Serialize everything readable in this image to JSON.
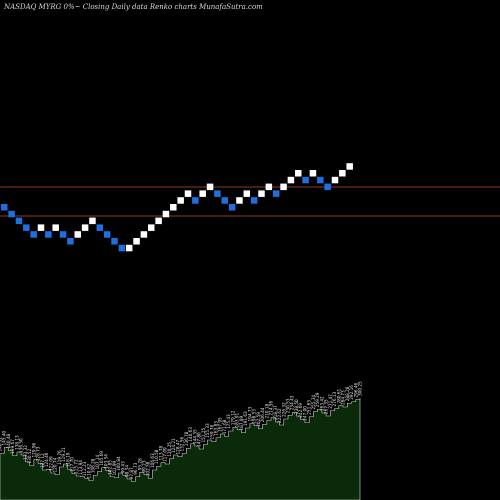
{
  "header": {
    "exchange_symbol": "NASDAQ MYRG",
    "change": "0%",
    "arrow": "~",
    "description": "Closing Daily data  Renko  charts  MunafaSutra.com"
  },
  "colors": {
    "background": "#000000",
    "up_brick": "#ffffff",
    "down_brick": "#1e6fe0",
    "level_line": "#8b3a20",
    "volume_fill": "#0a2a0a",
    "volume_stroke": "#cfd8cf"
  },
  "chart_data": {
    "type": "renko",
    "title": "",
    "bricks": [
      {
        "dir": "down",
        "row": 0
      },
      {
        "dir": "down",
        "row": 1
      },
      {
        "dir": "down",
        "row": 2
      },
      {
        "dir": "down",
        "row": 3
      },
      {
        "dir": "down",
        "row": 4
      },
      {
        "dir": "up",
        "row": 3
      },
      {
        "dir": "down",
        "row": 4
      },
      {
        "dir": "up",
        "row": 3
      },
      {
        "dir": "down",
        "row": 4
      },
      {
        "dir": "down",
        "row": 5
      },
      {
        "dir": "up",
        "row": 4
      },
      {
        "dir": "up",
        "row": 3
      },
      {
        "dir": "up",
        "row": 2
      },
      {
        "dir": "down",
        "row": 3
      },
      {
        "dir": "down",
        "row": 4
      },
      {
        "dir": "down",
        "row": 5
      },
      {
        "dir": "down",
        "row": 6
      },
      {
        "dir": "up",
        "row": 6
      },
      {
        "dir": "up",
        "row": 5
      },
      {
        "dir": "up",
        "row": 4
      },
      {
        "dir": "up",
        "row": 3
      },
      {
        "dir": "up",
        "row": 2
      },
      {
        "dir": "up",
        "row": 1
      },
      {
        "dir": "up",
        "row": 0
      },
      {
        "dir": "up",
        "row": -1
      },
      {
        "dir": "up",
        "row": -2
      },
      {
        "dir": "down",
        "row": -1
      },
      {
        "dir": "up",
        "row": -2
      },
      {
        "dir": "up",
        "row": -3
      },
      {
        "dir": "down",
        "row": -2
      },
      {
        "dir": "down",
        "row": -1
      },
      {
        "dir": "down",
        "row": 0
      },
      {
        "dir": "up",
        "row": -1
      },
      {
        "dir": "up",
        "row": -2
      },
      {
        "dir": "down",
        "row": -1
      },
      {
        "dir": "up",
        "row": -2
      },
      {
        "dir": "up",
        "row": -3
      },
      {
        "dir": "down",
        "row": -2
      },
      {
        "dir": "up",
        "row": -3
      },
      {
        "dir": "up",
        "row": -4
      },
      {
        "dir": "up",
        "row": -5
      },
      {
        "dir": "down",
        "row": -4
      },
      {
        "dir": "up",
        "row": -5
      },
      {
        "dir": "down",
        "row": -4
      },
      {
        "dir": "down",
        "row": -3
      },
      {
        "dir": "up",
        "row": -4
      },
      {
        "dir": "up",
        "row": -5
      },
      {
        "dir": "up",
        "row": -6
      }
    ],
    "level_lines": [
      "upper",
      "lower"
    ],
    "volume_labels": [
      "148.92",
      "145.40",
      "140.48",
      "139.67",
      "138.13",
      "136.50",
      "133.32",
      "130.52",
      "129.96",
      "128.73",
      "127.12",
      "124.46",
      "122.09",
      "120.74",
      "119.76",
      "119.21",
      "118.19",
      "117.70",
      "115.72",
      "113.94",
      "112.23",
      "110.62",
      "108.28",
      "107.14",
      "105.69",
      "103.54",
      "102.85",
      "101.99",
      "100.84",
      "99.43",
      "98.34",
      "97.87",
      "96.73",
      "95.28",
      "99.23",
      "102.58",
      "106.63",
      "110.58",
      "113.78",
      "117.09",
      "120.25",
      "124.21",
      "128.47",
      "132.56",
      "136.78",
      "140.63",
      "144.35",
      "147.80",
      "151.25",
      "155.33",
      "159.78",
      "163.83",
      "167.95",
      "171.68",
      "175.43",
      "179.12",
      "183.91",
      "187.89",
      "191.63",
      "194.73",
      "198.53",
      "202.59",
      "206.44",
      "210.18",
      "214.56",
      "218.37",
      "222.62",
      "226.32",
      "230.53",
      "234.43",
      "238.50",
      "242.69",
      "247.00",
      "251.63",
      "255.34",
      "259.29",
      "263.42",
      "267.35",
      "271.47",
      "276.13",
      "280.61",
      "284.73",
      "288.28",
      "292.16",
      "296.46",
      "300.25"
    ],
    "volume_values": [
      62,
      70,
      66,
      59,
      64,
      60,
      51,
      46,
      54,
      49,
      40,
      41,
      36,
      34,
      44,
      48,
      41,
      35,
      32,
      31,
      29,
      26,
      33,
      38,
      43,
      39,
      31,
      30,
      36,
      33,
      28,
      25,
      31,
      37,
      34,
      29,
      40,
      45,
      50,
      48,
      55,
      60,
      58,
      62,
      69,
      75,
      72,
      68,
      74,
      80,
      78,
      83,
      88,
      85,
      92,
      97,
      94,
      90,
      96,
      102,
      99,
      95,
      101,
      106,
      110,
      104,
      100,
      108,
      113,
      117,
      112,
      107,
      103,
      111,
      118,
      121,
      116,
      112,
      119,
      122,
      126,
      124,
      129,
      131,
      134,
      136
    ]
  }
}
